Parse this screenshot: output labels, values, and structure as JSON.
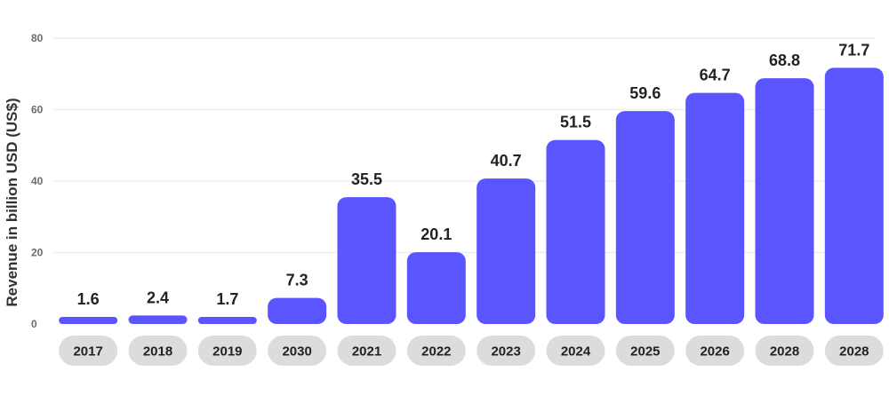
{
  "chart_data": {
    "type": "bar",
    "categories": [
      "2017",
      "2018",
      "2019",
      "2030",
      "2021",
      "2022",
      "2023",
      "2024",
      "2025",
      "2026",
      "2028",
      "2028"
    ],
    "values": [
      1.6,
      2.4,
      1.7,
      7.3,
      35.5,
      20.1,
      40.7,
      51.5,
      59.6,
      64.7,
      68.8,
      71.7
    ],
    "value_labels": [
      "1.6",
      "2.4",
      "1.7",
      "7.3",
      "35.5",
      "20.1",
      "40.7",
      "51.5",
      "59.6",
      "64.7",
      "68.8",
      "71.7"
    ],
    "ylabel": "Revenue in billion USD (US$)",
    "ylim": [
      0,
      80
    ],
    "yticks": [
      "0",
      "20",
      "40",
      "60",
      "80"
    ],
    "grid": true,
    "colors": {
      "bar": "#5a55ff",
      "category_pill": "#dcdcde",
      "grid": "#eeeeee"
    }
  }
}
